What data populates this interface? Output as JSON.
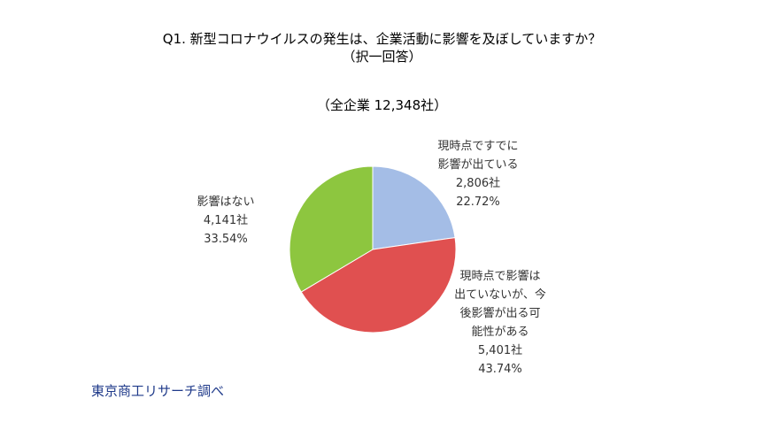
{
  "chart_data": {
    "type": "pie",
    "title": [
      "Q1. 新型コロナウイルスの発生は、企業活動に影響を及ぼしていますか？",
      "（択一回答）"
    ],
    "subtitle": "（全企業 12,348社）",
    "slices": [
      {
        "label_lines": [
          "現時点ですでに",
          "影響が出ている"
        ],
        "count": "2,806社",
        "percent": "22.72%",
        "value": 22.72,
        "color": "#a4bde6"
      },
      {
        "label_lines": [
          "現時点で影響は",
          "出ていないが、今",
          "後影響が出る可",
          "能性がある"
        ],
        "count": "5,401社",
        "percent": "43.74%",
        "value": 43.74,
        "color": "#e05050"
      },
      {
        "label_lines": [
          "影響はない"
        ],
        "count": "4,141社",
        "percent": "33.54%",
        "value": 33.54,
        "color": "#8dc63f"
      }
    ],
    "source": "東京商工リサーチ調べ"
  }
}
